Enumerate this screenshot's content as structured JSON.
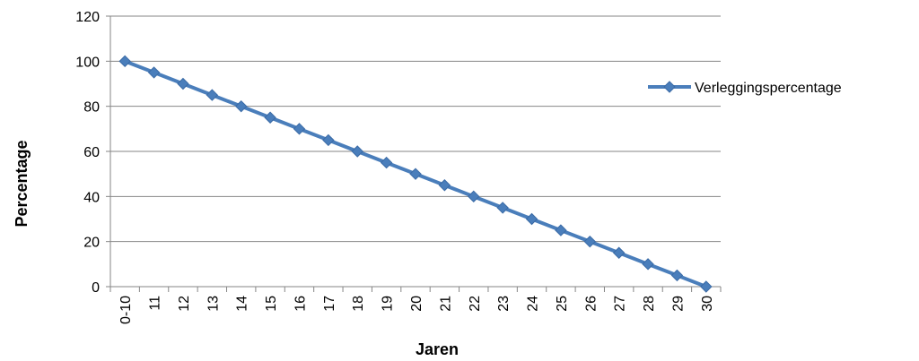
{
  "chart_data": {
    "type": "line",
    "categories": [
      "0-10",
      "11",
      "12",
      "13",
      "14",
      "15",
      "16",
      "17",
      "18",
      "19",
      "20",
      "21",
      "22",
      "23",
      "24",
      "25",
      "26",
      "27",
      "28",
      "29",
      "30"
    ],
    "series": [
      {
        "name": "Verleggingspercentage",
        "values": [
          100,
          95,
          90,
          85,
          80,
          75,
          70,
          65,
          60,
          55,
          50,
          45,
          40,
          35,
          30,
          25,
          20,
          15,
          10,
          5,
          0
        ],
        "color": "#4A7EBB",
        "marker": "diamond"
      }
    ],
    "xlabel": "Jaren",
    "ylabel": "Percentage",
    "ylim": [
      0,
      120
    ],
    "yticks": [
      0,
      20,
      40,
      60,
      80,
      100,
      120
    ],
    "grid": "horizontal",
    "legend_position": "right"
  }
}
